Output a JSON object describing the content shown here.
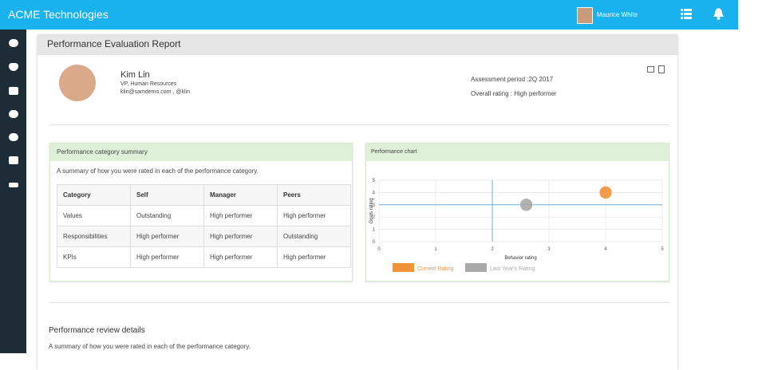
{
  "app": {
    "title": "ACME Technologies",
    "user": "Maurice White"
  },
  "page": {
    "title": "Performance Evaluation Report"
  },
  "profile": {
    "name": "Kim Lin",
    "role": "VP, Human Resources",
    "contact": "klin@samdemo.com , @klin",
    "period": "Assessment period :2Q 2017",
    "overall": "Overall rating : High performer"
  },
  "summary": {
    "title": "Performance category summary",
    "description": "A summary of how you were rated in each of the performance category.",
    "table": {
      "header": [
        "Category",
        "Self",
        "Manager",
        "Peers"
      ],
      "rows": [
        [
          "Values",
          "Outstanding",
          "High performer",
          "High performer"
        ],
        [
          "Responsibilities",
          "High performer",
          "High performer",
          "Outstanding"
        ],
        [
          "KPIs",
          "High performer",
          "High performer",
          "High performer"
        ]
      ]
    }
  },
  "chart_panel": {
    "title": "Performance chart"
  },
  "chart_data": {
    "type": "scatter",
    "x_label": "Behavior rating",
    "y_label": "Goals rating",
    "xlim": [
      0,
      5
    ],
    "ylim": [
      0,
      5
    ],
    "xticks": [
      0,
      1,
      2,
      3,
      4,
      5
    ],
    "yticks": [
      0,
      1,
      2,
      3,
      4,
      5
    ],
    "grid": true,
    "reference_lines": {
      "x": 2,
      "y": 3
    },
    "legend": "bottom",
    "series": [
      {
        "name": "Current Rating",
        "color": "#f0923a",
        "x": [
          4
        ],
        "values": [
          4
        ]
      },
      {
        "name": "Last Year's Rating",
        "color": "#a9a9a9",
        "x": [
          2.6
        ],
        "values": [
          3
        ]
      }
    ]
  },
  "review": {
    "title": "Performance review details",
    "description": "A summary of how you were rated in each of the performance category."
  }
}
